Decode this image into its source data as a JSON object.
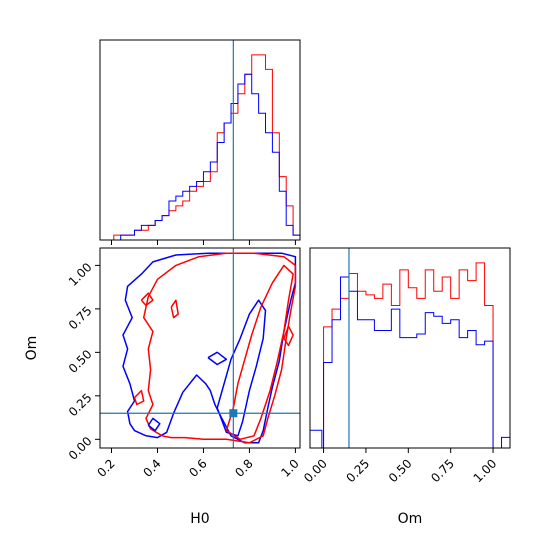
{
  "chart_data": {
    "type": "corner",
    "parameters": [
      "H0",
      "Om"
    ],
    "colors": {
      "red": "#ff0000",
      "blue": "#0000ff",
      "truth": "#1f77b4"
    },
    "truth": {
      "H0": 0.73,
      "Om": 0.15
    },
    "panels": [
      {
        "id": "hist-H0",
        "type": "step-histogram",
        "xlim": [
          0.15,
          1.02
        ],
        "xticks": [
          0.2,
          0.4,
          0.6,
          0.8,
          1.0
        ],
        "bin_edges": [
          0.15,
          0.18,
          0.21,
          0.24,
          0.27,
          0.3,
          0.33,
          0.36,
          0.39,
          0.42,
          0.45,
          0.48,
          0.51,
          0.54,
          0.57,
          0.6,
          0.63,
          0.66,
          0.69,
          0.72,
          0.75,
          0.78,
          0.81,
          0.84,
          0.87,
          0.9,
          0.93,
          0.96,
          0.99,
          1.02
        ],
        "series": [
          {
            "color": "red",
            "counts": [
              0,
              0,
              1,
              1,
              1,
              2,
              2,
              3,
              4,
              5,
              6,
              7,
              8,
              10,
              11,
              12,
              14,
              22,
              24,
              26,
              30,
              34,
              38,
              38,
              35,
              22,
              13,
              7,
              1
            ]
          },
          {
            "color": "blue",
            "counts": [
              0,
              0,
              0,
              1,
              1,
              2,
              3,
              3,
              4,
              5,
              8,
              9,
              10,
              11,
              12,
              14,
              16,
              20,
              24,
              28,
              32,
              34,
              30,
              26,
              22,
              18,
              10,
              3,
              1
            ]
          }
        ]
      },
      {
        "id": "contour-H0-Om",
        "type": "contour",
        "xlim": [
          0.15,
          1.02
        ],
        "ylim": [
          -0.05,
          1.1
        ],
        "xticks": [
          0.2,
          0.4,
          0.6,
          0.8,
          1.0
        ],
        "yticks": [
          0.0,
          0.25,
          0.5,
          0.75,
          1.0
        ],
        "xticklabels": [
          "0.2",
          "0.4",
          "0.6",
          "0.8",
          "1.0"
        ],
        "yticklabels": [
          "0.00",
          "0.25",
          "0.50",
          "0.75",
          "1.00"
        ],
        "xlabel": "H0",
        "ylabel": "Om",
        "truth_marker": {
          "x": 0.73,
          "y": 0.15
        },
        "contours": [
          {
            "color": "blue",
            "level": "outer",
            "points": [
              [
                0.35,
                0.02
              ],
              [
                0.3,
                0.05
              ],
              [
                0.28,
                0.09
              ],
              [
                0.27,
                0.16
              ],
              [
                0.3,
                0.22
              ],
              [
                0.28,
                0.32
              ],
              [
                0.25,
                0.42
              ],
              [
                0.27,
                0.52
              ],
              [
                0.25,
                0.6
              ],
              [
                0.29,
                0.7
              ],
              [
                0.26,
                0.8
              ],
              [
                0.27,
                0.88
              ],
              [
                0.33,
                0.95
              ],
              [
                0.38,
                1.02
              ],
              [
                0.48,
                1.06
              ],
              [
                0.62,
                1.07
              ],
              [
                0.78,
                1.07
              ],
              [
                0.94,
                1.07
              ],
              [
                1.0,
                1.05
              ],
              [
                1.0,
                0.9
              ],
              [
                0.98,
                0.8
              ],
              [
                0.95,
                0.62
              ],
              [
                0.93,
                0.45
              ],
              [
                0.9,
                0.3
              ],
              [
                0.88,
                0.18
              ],
              [
                0.86,
                0.05
              ],
              [
                0.84,
                -0.02
              ],
              [
                0.78,
                -0.02
              ],
              [
                0.72,
                0.02
              ],
              [
                0.68,
                0.12
              ],
              [
                0.65,
                0.2
              ],
              [
                0.63,
                0.28
              ],
              [
                0.61,
                0.32
              ],
              [
                0.57,
                0.37
              ],
              [
                0.51,
                0.27
              ],
              [
                0.47,
                0.15
              ],
              [
                0.44,
                0.04
              ],
              [
                0.4,
                0.01
              ],
              [
                0.35,
                0.02
              ]
            ]
          },
          {
            "color": "blue",
            "level": "inner",
            "points": [
              [
                0.66,
                0.18
              ],
              [
                0.69,
                0.32
              ],
              [
                0.72,
                0.46
              ],
              [
                0.76,
                0.58
              ],
              [
                0.8,
                0.72
              ],
              [
                0.84,
                0.8
              ],
              [
                0.87,
                0.74
              ],
              [
                0.86,
                0.58
              ],
              [
                0.83,
                0.42
              ],
              [
                0.8,
                0.28
              ],
              [
                0.77,
                0.1
              ],
              [
                0.75,
                0.02
              ],
              [
                0.7,
                0.04
              ],
              [
                0.66,
                0.18
              ]
            ]
          },
          {
            "color": "red",
            "level": "outer",
            "points": [
              [
                0.42,
                0.02
              ],
              [
                0.37,
                0.06
              ],
              [
                0.35,
                0.12
              ],
              [
                0.38,
                0.2
              ],
              [
                0.36,
                0.28
              ],
              [
                0.37,
                0.4
              ],
              [
                0.36,
                0.52
              ],
              [
                0.38,
                0.62
              ],
              [
                0.34,
                0.7
              ],
              [
                0.36,
                0.82
              ],
              [
                0.4,
                0.92
              ],
              [
                0.48,
                1.0
              ],
              [
                0.58,
                1.05
              ],
              [
                0.7,
                1.07
              ],
              [
                0.82,
                1.07
              ],
              [
                0.95,
                1.05
              ],
              [
                1.0,
                1.0
              ],
              [
                1.0,
                0.88
              ],
              [
                0.98,
                0.74
              ],
              [
                0.96,
                0.58
              ],
              [
                0.94,
                0.4
              ],
              [
                0.91,
                0.25
              ],
              [
                0.88,
                0.12
              ],
              [
                0.86,
                0.02
              ],
              [
                0.8,
                -0.02
              ],
              [
                0.7,
                0.0
              ],
              [
                0.6,
                0.0
              ],
              [
                0.52,
                0.01
              ],
              [
                0.46,
                0.01
              ],
              [
                0.42,
                0.02
              ]
            ]
          },
          {
            "color": "red",
            "level": "inner",
            "points": [
              [
                0.7,
                0.05
              ],
              [
                0.73,
                0.18
              ],
              [
                0.75,
                0.32
              ],
              [
                0.78,
                0.46
              ],
              [
                0.81,
                0.6
              ],
              [
                0.85,
                0.76
              ],
              [
                0.9,
                0.9
              ],
              [
                0.95,
                1.0
              ],
              [
                0.99,
                0.95
              ],
              [
                0.97,
                0.8
              ],
              [
                0.95,
                0.62
              ],
              [
                0.92,
                0.44
              ],
              [
                0.89,
                0.28
              ],
              [
                0.85,
                0.12
              ],
              [
                0.82,
                0.02
              ],
              [
                0.76,
                0.0
              ],
              [
                0.7,
                0.05
              ]
            ]
          },
          {
            "color": "red",
            "level": "island",
            "points": [
              [
                0.46,
                0.76
              ],
              [
                0.48,
                0.8
              ],
              [
                0.49,
                0.72
              ],
              [
                0.47,
                0.7
              ],
              [
                0.46,
                0.76
              ]
            ]
          },
          {
            "color": "red",
            "level": "island",
            "points": [
              [
                0.33,
                0.8
              ],
              [
                0.36,
                0.84
              ],
              [
                0.38,
                0.8
              ],
              [
                0.35,
                0.77
              ],
              [
                0.33,
                0.8
              ]
            ]
          },
          {
            "color": "red",
            "level": "island",
            "points": [
              [
                0.95,
                0.58
              ],
              [
                0.97,
                0.65
              ],
              [
                0.99,
                0.6
              ],
              [
                0.97,
                0.54
              ],
              [
                0.95,
                0.58
              ]
            ]
          },
          {
            "color": "blue",
            "level": "island",
            "points": [
              [
                0.62,
                0.47
              ],
              [
                0.66,
                0.5
              ],
              [
                0.7,
                0.46
              ],
              [
                0.66,
                0.43
              ],
              [
                0.62,
                0.47
              ]
            ]
          },
          {
            "color": "red",
            "level": "island",
            "points": [
              [
                0.3,
                0.24
              ],
              [
                0.33,
                0.28
              ],
              [
                0.34,
                0.22
              ],
              [
                0.31,
                0.2
              ],
              [
                0.3,
                0.24
              ]
            ]
          },
          {
            "color": "blue",
            "level": "island",
            "points": [
              [
                0.36,
                0.08
              ],
              [
                0.38,
                0.12
              ],
              [
                0.41,
                0.09
              ],
              [
                0.39,
                0.05
              ],
              [
                0.36,
                0.08
              ]
            ]
          }
        ]
      },
      {
        "id": "hist-Om",
        "type": "step-histogram",
        "xlim": [
          -0.08,
          1.1
        ],
        "xticks": [
          0.0,
          0.25,
          0.5,
          0.75,
          1.0
        ],
        "xticklabels": [
          "0.00",
          "0.25",
          "0.50",
          "0.75",
          "1.00"
        ],
        "xlabel": "Om",
        "bin_edges": [
          -0.08,
          -0.01,
          0.0,
          0.05,
          0.1,
          0.15,
          0.2,
          0.25,
          0.3,
          0.35,
          0.4,
          0.45,
          0.5,
          0.55,
          0.6,
          0.65,
          0.7,
          0.75,
          0.8,
          0.85,
          0.9,
          0.95,
          1.0,
          1.05,
          1.1
        ],
        "series": [
          {
            "color": "red",
            "counts": [
              0,
              0,
              34,
              39,
              42,
              49,
              44,
              43,
              42,
              46,
              40,
              50,
              45,
              42,
              50,
              44,
              48,
              42,
              50,
              47,
              52,
              40,
              0,
              0
            ]
          },
          {
            "color": "blue",
            "counts": [
              5,
              0,
              24,
              36,
              48,
              44,
              36,
              36,
              33,
              33,
              39,
              31,
              31,
              32,
              38,
              37,
              35,
              36,
              31,
              33,
              29,
              30,
              0,
              3
            ]
          }
        ]
      }
    ]
  }
}
